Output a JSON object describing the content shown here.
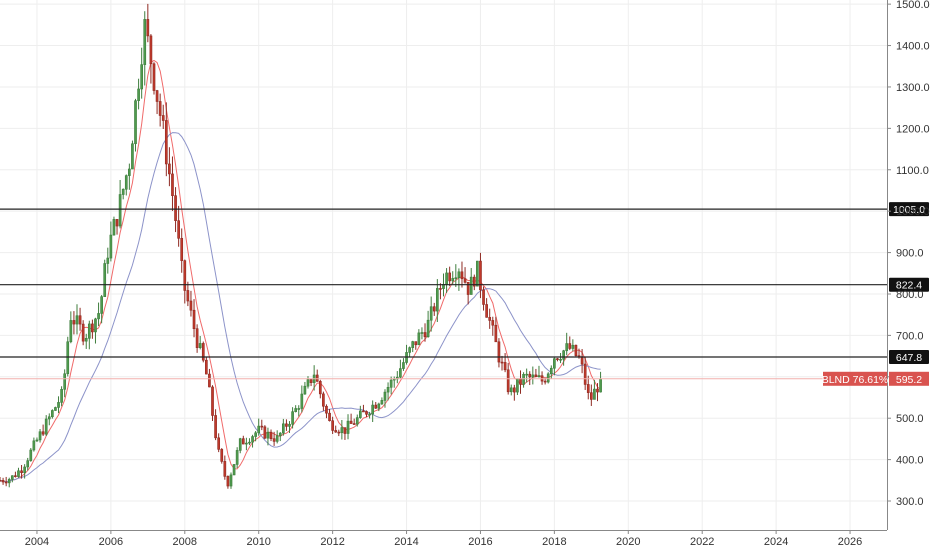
{
  "chart_data": {
    "type": "candlestick",
    "symbol": "BLND",
    "change_label": "BLND 76.61%",
    "last_price_label": "595.2",
    "last_price": 595.2,
    "x_ticks": [
      "2004",
      "2006",
      "2008",
      "2010",
      "2012",
      "2014",
      "2016",
      "2018",
      "2020",
      "2022",
      "2024",
      "2026"
    ],
    "xlim": [
      2003.0,
      2027.0
    ],
    "y_ticks": [
      "300.0",
      "400.0",
      "500.0",
      "600.0",
      "700.0",
      "800.0",
      "900.0",
      "1000.0",
      "1100.0",
      "1200.0",
      "1300.0",
      "1400.0",
      "1500.0"
    ],
    "ylim": [
      230,
      1510
    ],
    "levels": [
      {
        "label": "1005.0",
        "value": 1005.0
      },
      {
        "label": "822.4",
        "value": 822.4
      },
      {
        "label": "647.8",
        "value": 647.8
      }
    ],
    "price_path": [
      [
        2003.0,
        350
      ],
      [
        2003.3,
        355
      ],
      [
        2003.6,
        380
      ],
      [
        2003.9,
        430
      ],
      [
        2004.3,
        495
      ],
      [
        2004.7,
        560
      ],
      [
        2004.9,
        750
      ],
      [
        2005.3,
        700
      ],
      [
        2005.7,
        760
      ],
      [
        2005.9,
        900
      ],
      [
        2006.2,
        1000
      ],
      [
        2006.5,
        1120
      ],
      [
        2006.9,
        1450
      ],
      [
        2007.1,
        1360
      ],
      [
        2007.4,
        1200
      ],
      [
        2007.7,
        1020
      ],
      [
        2007.95,
        830
      ],
      [
        2008.3,
        700
      ],
      [
        2008.6,
        600
      ],
      [
        2008.9,
        420
      ],
      [
        2009.15,
        340
      ],
      [
        2009.5,
        440
      ],
      [
        2010.0,
        470
      ],
      [
        2010.5,
        450
      ],
      [
        2011.0,
        520
      ],
      [
        2011.5,
        610
      ],
      [
        2011.9,
        490
      ],
      [
        2012.3,
        470
      ],
      [
        2012.7,
        500
      ],
      [
        2013.2,
        540
      ],
      [
        2013.7,
        600
      ],
      [
        2014.2,
        680
      ],
      [
        2014.6,
        730
      ],
      [
        2015.0,
        840
      ],
      [
        2015.4,
        870
      ],
      [
        2015.7,
        810
      ],
      [
        2015.9,
        860
      ],
      [
        2016.2,
        750
      ],
      [
        2016.5,
        650
      ],
      [
        2016.8,
        560
      ],
      [
        2017.2,
        600
      ],
      [
        2017.7,
        590
      ],
      [
        2018.0,
        650
      ],
      [
        2018.4,
        670
      ],
      [
        2018.7,
        640
      ],
      [
        2018.95,
        540
      ],
      [
        2019.15,
        575
      ],
      [
        2019.3,
        595.2
      ]
    ],
    "series": [
      {
        "type": "candles",
        "up_color": "#3f7e3e",
        "down_color": "#8f2a22"
      },
      {
        "type": "moving_average",
        "color": "#f06a6a",
        "period": 6
      },
      {
        "type": "moving_average",
        "color": "#8c93c9",
        "period": 20
      }
    ],
    "grid": true
  },
  "colors": {
    "price_tag": "#d9534f",
    "price_line": "#f2b0ae",
    "level_tag": "#111111",
    "grid": "#eeeeee"
  }
}
